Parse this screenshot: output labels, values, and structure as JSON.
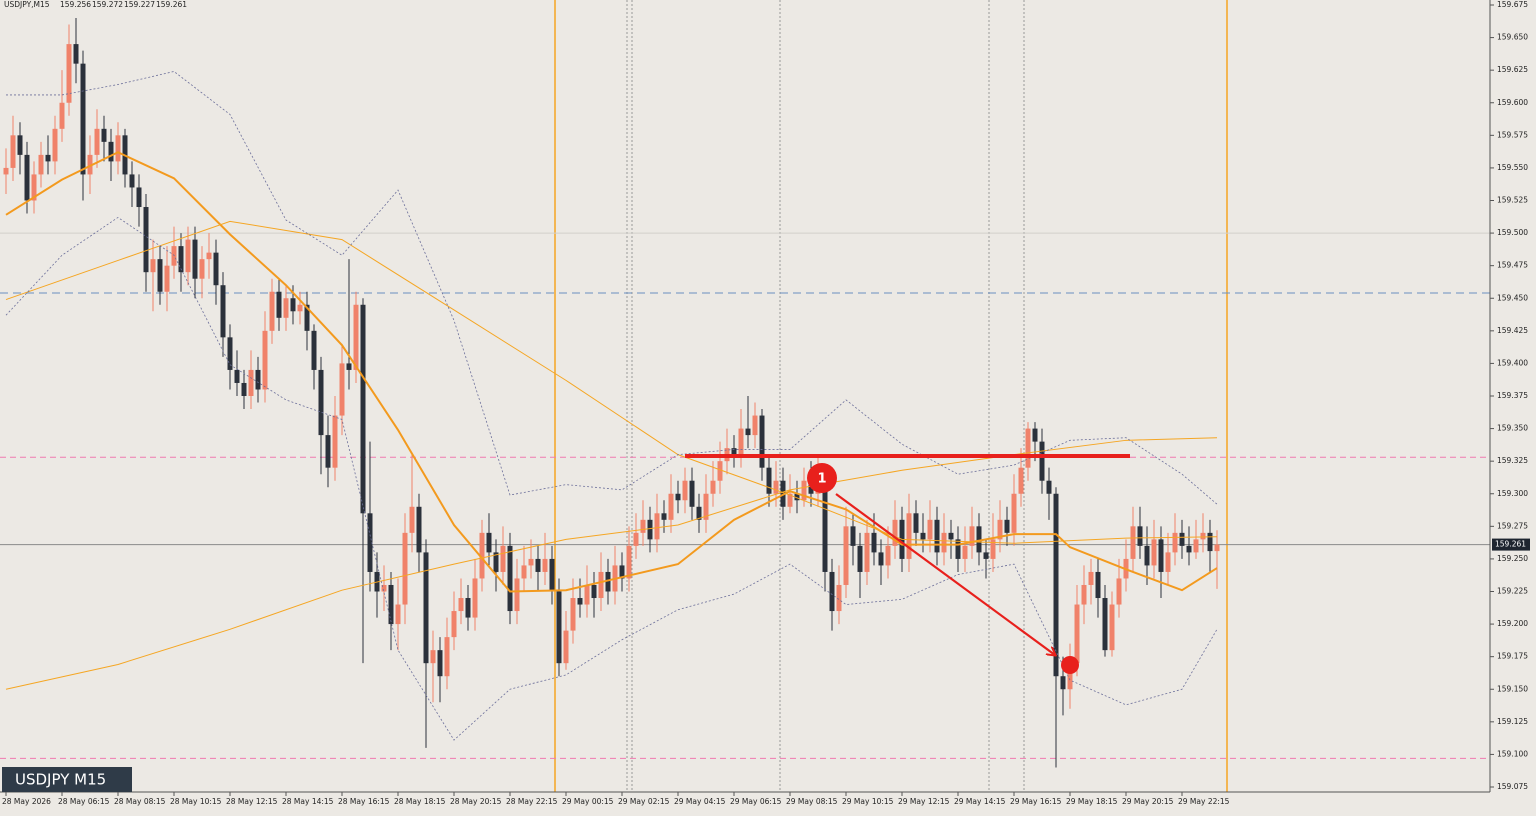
{
  "chart_data": {
    "type": "candlestick",
    "symbol": "USDJPY,M15",
    "header_ohlc": [
      159.256,
      159.272,
      159.227,
      159.261
    ],
    "label": "USDJPY M15",
    "annotations": [
      "1"
    ],
    "last_price": 159.261,
    "ylim": [
      159.075,
      159.675
    ],
    "yticks": [
      159.675,
      {
        "value": 159.65,
        "label": "159.650"
      },
      {
        "value": 159.625,
        "label": "159.625"
      },
      {
        "value": 159.6,
        "label": "159.600"
      },
      159.575,
      {
        "value": 159.55,
        "label": "159.550"
      },
      159.525,
      {
        "value": 159.5,
        "label": "159.500"
      },
      159.475,
      {
        "value": 159.45,
        "label": "159.450"
      },
      159.425,
      {
        "value": 159.4,
        "label": "159.400"
      },
      159.375,
      {
        "value": 159.35,
        "label": "159.350"
      },
      159.325,
      {
        "value": 159.3,
        "label": "159.300"
      },
      159.275,
      {
        "value": 159.25,
        "label": "159.250"
      },
      159.225,
      {
        "value": 159.2,
        "label": "159.200"
      },
      159.175,
      {
        "value": 159.15,
        "label": "159.150"
      },
      159.125,
      {
        "value": 159.1,
        "label": "159.100"
      },
      159.075
    ],
    "up_color": "#f0826a",
    "down_color": "#2b313b",
    "categories": [
      "28 May 2026",
      null,
      null,
      null,
      null,
      null,
      null,
      null,
      "28 May 06:15",
      null,
      null,
      null,
      null,
      null,
      null,
      null,
      "28 May 08:15",
      null,
      null,
      null,
      null,
      null,
      null,
      null,
      "28 May 10:15",
      null,
      null,
      null,
      null,
      null,
      null,
      null,
      "28 May 12:15",
      null,
      null,
      null,
      null,
      null,
      null,
      null,
      "28 May 14:15",
      null,
      null,
      null,
      null,
      null,
      null,
      null,
      "28 May 16:15",
      null,
      null,
      null,
      null,
      null,
      null,
      null,
      "28 May 18:15",
      null,
      null,
      null,
      null,
      null,
      null,
      null,
      "28 May 20:15",
      null,
      null,
      null,
      null,
      null,
      null,
      null,
      "28 May 22:15",
      null,
      null,
      null,
      null,
      null,
      null,
      null,
      "29 May 00:15",
      null,
      null,
      null,
      null,
      null,
      null,
      null,
      "29 May 02:15",
      null,
      null,
      null,
      null,
      null,
      null,
      null,
      "29 May 04:15",
      null,
      null,
      null,
      null,
      null,
      null,
      null,
      "29 May 06:15",
      null,
      null,
      null,
      null,
      null,
      null,
      null,
      "29 May 08:15",
      null,
      null,
      null,
      null,
      null,
      null,
      null,
      "29 May 10:15",
      null,
      null,
      null,
      null,
      null,
      null,
      null,
      "29 May 12:15",
      null,
      null,
      null,
      null,
      null,
      null,
      null,
      "29 May 14:15",
      null,
      null,
      null,
      null,
      null,
      null,
      null,
      "29 May 16:15",
      null,
      null,
      null,
      null,
      null,
      null,
      null,
      "29 May 18:15",
      null,
      null,
      null,
      null,
      null,
      null,
      null,
      "29 May 20:15",
      null,
      null,
      null,
      null,
      null,
      null,
      null,
      "29 May 22:15",
      null,
      null,
      null,
      null,
      null
    ],
    "open": [
      159.545,
      159.55,
      159.575,
      159.56,
      159.525,
      159.545,
      159.56,
      159.555,
      159.58,
      159.6,
      159.645,
      159.63,
      159.545,
      159.56,
      159.58,
      159.57,
      159.555,
      159.575,
      159.545,
      159.535,
      159.52,
      159.47,
      159.48,
      159.455,
      159.475,
      159.49,
      159.47,
      159.495,
      159.465,
      159.48,
      159.485,
      159.46,
      159.42,
      159.395,
      159.385,
      159.375,
      159.395,
      159.38,
      159.425,
      159.455,
      159.435,
      159.45,
      159.44,
      159.445,
      159.425,
      159.395,
      159.345,
      159.32,
      159.36,
      159.4,
      159.395,
      159.445,
      159.285,
      159.24,
      159.225,
      159.23,
      159.2,
      159.215,
      159.27,
      159.29,
      159.255,
      159.17,
      159.18,
      159.16,
      159.19,
      159.21,
      159.22,
      159.205,
      159.235,
      159.27,
      159.255,
      159.24,
      159.26,
      159.21,
      159.235,
      159.245,
      159.25,
      159.24,
      159.25,
      159.225,
      159.17,
      159.195,
      159.22,
      159.215,
      159.23,
      159.22,
      159.24,
      159.225,
      159.245,
      159.235,
      159.26,
      159.27,
      159.28,
      159.265,
      159.285,
      159.28,
      159.3,
      159.295,
      159.31,
      159.29,
      159.28,
      159.3,
      159.31,
      159.325,
      159.335,
      159.33,
      159.35,
      159.345,
      159.36,
      159.32,
      159.3,
      159.31,
      159.29,
      159.3,
      159.295,
      159.31,
      159.3,
      159.315,
      159.24,
      159.21,
      159.23,
      159.275,
      159.26,
      159.24,
      159.27,
      159.255,
      159.245,
      159.26,
      159.28,
      159.25,
      159.285,
      159.27,
      159.265,
      159.28,
      159.255,
      159.27,
      159.265,
      159.25,
      159.26,
      159.275,
      159.255,
      159.25,
      159.265,
      159.28,
      159.27,
      159.3,
      159.32,
      159.35,
      159.34,
      159.31,
      159.3,
      159.16,
      159.15,
      159.17,
      159.215,
      159.23,
      159.24,
      159.22,
      159.18,
      159.215,
      159.235,
      159.25,
      159.275,
      159.26,
      159.245,
      159.265,
      159.24,
      159.255,
      159.27,
      159.26,
      159.255,
      159.265,
      159.27,
      159.256
    ],
    "close": [
      159.55,
      159.575,
      159.56,
      159.525,
      159.545,
      159.56,
      159.555,
      159.58,
      159.6,
      159.645,
      159.63,
      159.545,
      159.56,
      159.58,
      159.57,
      159.555,
      159.575,
      159.545,
      159.535,
      159.52,
      159.47,
      159.48,
      159.455,
      159.475,
      159.49,
      159.47,
      159.495,
      159.465,
      159.48,
      159.485,
      159.46,
      159.42,
      159.395,
      159.385,
      159.375,
      159.395,
      159.38,
      159.425,
      159.455,
      159.435,
      159.45,
      159.44,
      159.445,
      159.425,
      159.395,
      159.345,
      159.32,
      159.36,
      159.4,
      159.395,
      159.445,
      159.285,
      159.24,
      159.225,
      159.23,
      159.2,
      159.215,
      159.27,
      159.29,
      159.255,
      159.17,
      159.18,
      159.16,
      159.19,
      159.21,
      159.22,
      159.205,
      159.235,
      159.27,
      159.255,
      159.24,
      159.26,
      159.21,
      159.235,
      159.245,
      159.25,
      159.24,
      159.25,
      159.225,
      159.17,
      159.195,
      159.22,
      159.215,
      159.23,
      159.22,
      159.24,
      159.225,
      159.245,
      159.235,
      159.26,
      159.27,
      159.28,
      159.265,
      159.285,
      159.28,
      159.3,
      159.295,
      159.31,
      159.29,
      159.28,
      159.3,
      159.31,
      159.325,
      159.335,
      159.33,
      159.35,
      159.345,
      159.36,
      159.32,
      159.3,
      159.31,
      159.29,
      159.3,
      159.295,
      159.31,
      159.3,
      159.315,
      159.24,
      159.21,
      159.23,
      159.275,
      159.26,
      159.24,
      159.27,
      159.255,
      159.245,
      159.26,
      159.28,
      159.25,
      159.285,
      159.27,
      159.265,
      159.28,
      159.255,
      159.27,
      159.265,
      159.25,
      159.26,
      159.275,
      159.255,
      159.25,
      159.265,
      159.28,
      159.27,
      159.3,
      159.32,
      159.35,
      159.34,
      159.31,
      159.3,
      159.16,
      159.15,
      159.17,
      159.215,
      159.23,
      159.24,
      159.22,
      159.18,
      159.215,
      159.235,
      159.25,
      159.275,
      159.26,
      159.245,
      159.265,
      159.24,
      159.255,
      159.27,
      159.26,
      159.255,
      159.265,
      159.27,
      159.256,
      159.261
    ],
    "high": [
      159.565,
      159.59,
      159.585,
      159.57,
      159.555,
      159.57,
      159.575,
      159.59,
      159.625,
      159.66,
      159.665,
      159.64,
      159.575,
      159.595,
      159.59,
      159.58,
      159.585,
      159.58,
      159.555,
      159.545,
      159.53,
      159.495,
      159.49,
      159.49,
      159.505,
      159.5,
      159.505,
      159.505,
      159.49,
      159.5,
      159.495,
      159.47,
      159.43,
      159.41,
      159.395,
      159.41,
      159.405,
      159.44,
      159.465,
      159.465,
      159.46,
      159.46,
      159.455,
      159.455,
      159.43,
      159.405,
      159.36,
      159.375,
      159.415,
      159.48,
      159.455,
      159.45,
      159.34,
      159.255,
      159.245,
      159.24,
      159.235,
      159.285,
      159.33,
      159.3,
      159.265,
      159.195,
      159.19,
      159.205,
      159.225,
      159.235,
      159.23,
      159.25,
      159.28,
      159.285,
      159.265,
      159.275,
      159.27,
      159.25,
      159.26,
      159.265,
      159.26,
      159.27,
      159.26,
      159.235,
      159.21,
      159.235,
      159.235,
      159.245,
      159.24,
      159.255,
      159.25,
      159.26,
      159.255,
      159.275,
      159.285,
      159.295,
      159.29,
      159.3,
      159.295,
      159.315,
      159.31,
      159.32,
      159.32,
      159.3,
      159.315,
      159.325,
      159.34,
      159.35,
      159.345,
      159.365,
      159.375,
      159.37,
      159.365,
      159.33,
      159.325,
      159.32,
      159.315,
      159.31,
      159.32,
      159.325,
      159.33,
      159.32,
      159.25,
      159.245,
      159.29,
      159.285,
      159.27,
      159.28,
      159.285,
      159.265,
      159.275,
      159.295,
      159.29,
      159.3,
      159.295,
      159.285,
      159.295,
      159.29,
      159.285,
      159.28,
      159.275,
      159.275,
      159.29,
      159.285,
      159.265,
      159.285,
      159.295,
      159.29,
      159.315,
      159.335,
      159.355,
      159.355,
      159.35,
      159.32,
      159.305,
      159.175,
      159.185,
      159.23,
      159.245,
      159.25,
      159.25,
      159.23,
      159.225,
      159.25,
      159.265,
      159.29,
      159.29,
      159.275,
      159.28,
      159.275,
      159.27,
      159.285,
      159.28,
      159.275,
      159.28,
      159.285,
      159.28,
      159.272
    ],
    "low": [
      159.53,
      159.54,
      159.545,
      159.515,
      159.515,
      159.535,
      159.545,
      159.545,
      159.57,
      159.59,
      159.615,
      159.525,
      159.53,
      159.55,
      159.555,
      159.54,
      159.545,
      159.535,
      159.52,
      159.505,
      159.455,
      159.44,
      159.445,
      159.44,
      159.465,
      159.455,
      159.46,
      159.45,
      159.45,
      159.465,
      159.445,
      159.405,
      159.38,
      159.375,
      159.365,
      159.365,
      159.37,
      159.37,
      159.415,
      159.425,
      159.425,
      159.43,
      159.43,
      159.41,
      159.38,
      159.315,
      159.305,
      159.31,
      159.345,
      159.38,
      159.385,
      159.17,
      159.225,
      159.205,
      159.21,
      159.18,
      159.18,
      159.2,
      159.255,
      159.24,
      159.105,
      159.14,
      159.14,
      159.15,
      159.18,
      159.2,
      159.195,
      159.195,
      159.225,
      159.245,
      159.225,
      159.23,
      159.2,
      159.2,
      159.225,
      159.235,
      159.225,
      159.23,
      159.215,
      159.16,
      159.165,
      159.185,
      159.205,
      159.205,
      159.205,
      159.21,
      159.215,
      159.215,
      159.225,
      159.225,
      159.25,
      159.26,
      159.255,
      159.255,
      159.27,
      159.27,
      159.285,
      159.285,
      159.28,
      159.27,
      159.27,
      159.29,
      159.3,
      159.315,
      159.32,
      159.32,
      159.335,
      159.335,
      159.31,
      159.29,
      159.29,
      159.28,
      159.285,
      159.285,
      159.29,
      159.29,
      159.29,
      159.225,
      159.195,
      159.2,
      159.22,
      159.245,
      159.22,
      159.23,
      159.245,
      159.23,
      159.235,
      159.25,
      159.24,
      159.24,
      159.26,
      159.255,
      159.255,
      159.245,
      159.245,
      159.25,
      159.24,
      159.24,
      159.25,
      159.245,
      159.235,
      159.24,
      159.255,
      159.26,
      159.26,
      159.29,
      159.31,
      159.325,
      159.3,
      159.28,
      159.09,
      159.13,
      159.135,
      159.16,
      159.2,
      159.215,
      159.205,
      159.175,
      159.175,
      159.205,
      159.225,
      159.24,
      159.25,
      159.23,
      159.235,
      159.22,
      159.23,
      159.245,
      159.25,
      159.245,
      159.25,
      159.255,
      159.24,
      159.227
    ],
    "lines": [
      {
        "color": "#f39a1e",
        "width": 2,
        "x": [
          0,
          8,
          16,
          24,
          32,
          40,
          48,
          56,
          64,
          72,
          80,
          88,
          96,
          104,
          112,
          120,
          128,
          136,
          144,
          150,
          152,
          160,
          168,
          173
        ],
        "values": [
          159.514,
          159.541,
          159.562,
          159.542,
          159.499,
          159.46,
          159.414,
          159.349,
          159.276,
          159.225,
          159.226,
          159.236,
          159.246,
          159.28,
          159.302,
          159.288,
          159.261,
          159.261,
          159.269,
          159.269,
          159.259,
          159.242,
          159.226,
          159.243
        ]
      },
      {
        "color": "#f5a623",
        "width": 1,
        "x": [
          0,
          16,
          32,
          48,
          64,
          80,
          96,
          112,
          128,
          144,
          160,
          173
        ],
        "values": [
          159.449,
          159.479,
          159.509,
          159.495,
          159.441,
          159.387,
          159.33,
          159.299,
          159.265,
          159.262,
          159.266,
          159.267
        ]
      },
      {
        "color": "#f5a623",
        "width": 1,
        "x": [
          0,
          16,
          32,
          48,
          64,
          80,
          96,
          112,
          128,
          144,
          160,
          173
        ],
        "values": [
          159.15,
          159.169,
          159.196,
          159.226,
          159.246,
          159.265,
          159.276,
          159.303,
          159.318,
          159.33,
          159.341,
          159.343
        ]
      },
      {
        "color": "#6c6f9a",
        "width": 0.8,
        "dash": "2 2",
        "x": [
          0,
          8,
          16,
          24,
          32,
          40,
          48,
          56,
          64,
          72,
          80,
          88,
          96,
          104,
          112,
          120,
          128,
          136,
          144,
          152,
          160,
          168,
          173
        ],
        "values": [
          159.606,
          159.606,
          159.614,
          159.624,
          159.591,
          159.51,
          159.483,
          159.533,
          159.433,
          159.299,
          159.307,
          159.303,
          159.33,
          159.334,
          159.334,
          159.372,
          159.338,
          159.315,
          159.322,
          159.341,
          159.343,
          159.315,
          159.292
        ]
      },
      {
        "color": "#6c6f9a",
        "width": 0.8,
        "dash": "2 2",
        "x": [
          0,
          8,
          16,
          24,
          32,
          40,
          48,
          56,
          64,
          72,
          80,
          88,
          96,
          104,
          112,
          120,
          128,
          136,
          144,
          152,
          160,
          168,
          173
        ],
        "values": [
          159.437,
          159.483,
          159.512,
          159.483,
          159.399,
          159.372,
          159.357,
          159.18,
          159.111,
          159.15,
          159.161,
          159.188,
          159.211,
          159.223,
          159.246,
          159.215,
          159.219,
          159.238,
          159.246,
          159.157,
          159.138,
          159.15,
          159.196
        ]
      }
    ],
    "levels": [
      {
        "value": 159.5,
        "color": "#d2d0cb"
      },
      {
        "value": 159.454,
        "color": "#6a8fc0",
        "dash": "8 5"
      },
      {
        "value": 159.328,
        "color": "#f07ab0",
        "dash": "6 4"
      },
      {
        "value": 159.261,
        "color": "#8a8a8a"
      },
      {
        "value": 159.097,
        "color": "#f07ab0",
        "dash": "6 4"
      }
    ]
  }
}
